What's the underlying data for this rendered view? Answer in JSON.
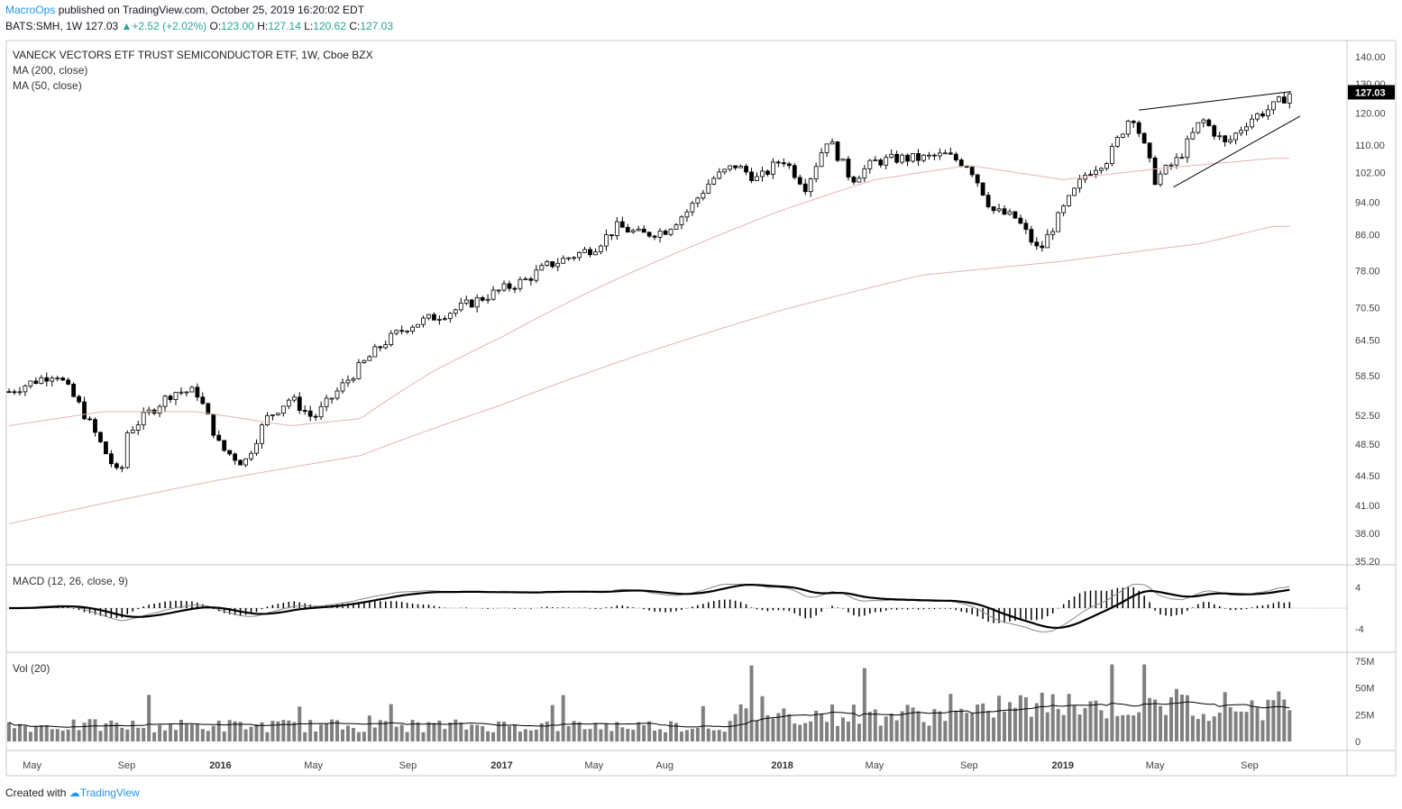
{
  "header": {
    "author": "MacroOps",
    "published": "published on TradingView.com, October 25, 2019 16:20:02 EDT",
    "symbol": "BATS:SMH, 1W",
    "last": "127.03",
    "change": "+2.52 (+2.02%)",
    "open_label": "O:",
    "open": "123.00",
    "high_label": "H:",
    "high": "127.14",
    "low_label": "L:",
    "low": "120.62",
    "close_label": "C:",
    "close": "127.03"
  },
  "legend": {
    "title": "VANECK VECTORS ETF TRUST SEMICONDUCTOR ETF, 1W, Cboe BZX",
    "ma200": "MA (200, close)",
    "ma50": "MA (50, close)",
    "macd": "MACD (12, 26, close, 9)",
    "vol": "Vol (20)"
  },
  "footer": {
    "created": "Created with",
    "brand": "TradingView"
  },
  "colors": {
    "up": "#ffffff",
    "down": "#000000",
    "ma": "#e8b4b4",
    "macd_line": "#000000",
    "vol_bar": "#808080",
    "accent": "#2196f3"
  },
  "chart_data": {
    "type": "candlestick",
    "price_axis": [
      "140.00",
      "130.00",
      "120.00",
      "110.00",
      "102.00",
      "94.00",
      "86.00",
      "78.00",
      "70.50",
      "64.50",
      "58.50",
      "52.50",
      "48.50",
      "44.50",
      "41.00",
      "38.00",
      "35.20"
    ],
    "last_price_badge": "127.03",
    "macd_axis": [
      "4",
      "-4"
    ],
    "volume_axis": [
      "75M",
      "50M",
      "25M",
      "0"
    ],
    "time_axis": [
      "May",
      "Sep",
      "2016",
      "May",
      "Sep",
      "2017",
      "May",
      "Aug",
      "2018",
      "May",
      "Sep",
      "2019",
      "May",
      "Sep"
    ],
    "close_path": [
      [
        "2015-04",
        56
      ],
      [
        "2015-06",
        59
      ],
      [
        "2015-07",
        54
      ],
      [
        "2015-08",
        48
      ],
      [
        "2015-08-24",
        44
      ],
      [
        "2015-09",
        50
      ],
      [
        "2015-11",
        56
      ],
      [
        "2015-12",
        56
      ],
      [
        "2016-01",
        48
      ],
      [
        "2016-02",
        46
      ],
      [
        "2016-03",
        52
      ],
      [
        "2016-04",
        55
      ],
      [
        "2016-05",
        52
      ],
      [
        "2016-06",
        56
      ],
      [
        "2016-07",
        60
      ],
      [
        "2016-08",
        64
      ],
      [
        "2016-09",
        67
      ],
      [
        "2016-11",
        70
      ],
      [
        "2016-12",
        72
      ],
      [
        "2017-02",
        76
      ],
      [
        "2017-03",
        79
      ],
      [
        "2017-05",
        83
      ],
      [
        "2017-06",
        88
      ],
      [
        "2017-07",
        86
      ],
      [
        "2017-08",
        87
      ],
      [
        "2017-09",
        92
      ],
      [
        "2017-10",
        100
      ],
      [
        "2017-11",
        104
      ],
      [
        "2017-12",
        100
      ],
      [
        "2018-01",
        106
      ],
      [
        "2018-02",
        98
      ],
      [
        "2018-03",
        112
      ],
      [
        "2018-04",
        100
      ],
      [
        "2018-05",
        105
      ],
      [
        "2018-06",
        106
      ],
      [
        "2018-07",
        106
      ],
      [
        "2018-08",
        107
      ],
      [
        "2018-09",
        104
      ],
      [
        "2018-10",
        92
      ],
      [
        "2018-11",
        90
      ],
      [
        "2018-12",
        82
      ],
      [
        "2019-01",
        92
      ],
      [
        "2019-02",
        102
      ],
      [
        "2019-03",
        106
      ],
      [
        "2019-04",
        120
      ],
      [
        "2019-05",
        100
      ],
      [
        "2019-06",
        106
      ],
      [
        "2019-07",
        118
      ],
      [
        "2019-08",
        110
      ],
      [
        "2019-09",
        118
      ],
      [
        "2019-10",
        122
      ],
      [
        "2019-10-25",
        127.03
      ]
    ],
    "ma50_path": [
      [
        "2015-04",
        51
      ],
      [
        "2015-08",
        53
      ],
      [
        "2015-12",
        53
      ],
      [
        "2016-04",
        51
      ],
      [
        "2016-07",
        52
      ],
      [
        "2016-10",
        59
      ],
      [
        "2017-01",
        65
      ],
      [
        "2017-05",
        74
      ],
      [
        "2017-09",
        83
      ],
      [
        "2018-01",
        92
      ],
      [
        "2018-05",
        100
      ],
      [
        "2018-09",
        104
      ],
      [
        "2019-01",
        100
      ],
      [
        "2019-05",
        103
      ],
      [
        "2019-10",
        106
      ]
    ],
    "ma200_path": [
      [
        "2015-04",
        39
      ],
      [
        "2016-01",
        44
      ],
      [
        "2016-07",
        47
      ],
      [
        "2017-01",
        54
      ],
      [
        "2017-07",
        62
      ],
      [
        "2018-01",
        70
      ],
      [
        "2018-07",
        77
      ],
      [
        "2019-01",
        80
      ],
      [
        "2019-07",
        84
      ],
      [
        "2019-10",
        88
      ]
    ],
    "trendlines": "ascending wedge from 2019-04 to 2019-10 (upper ~120→127, lower ~98→120)"
  }
}
